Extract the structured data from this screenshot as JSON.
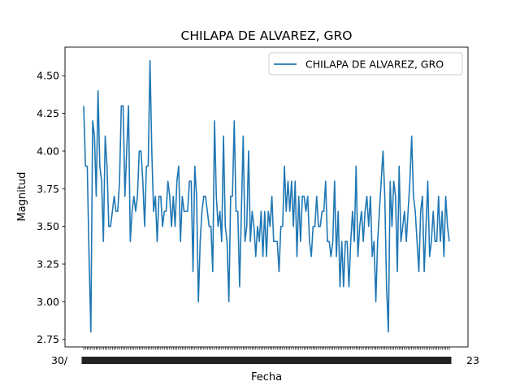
{
  "colors": {
    "line": "#1f77b4",
    "axes": "#000000",
    "legend_border": "#cccccc",
    "background": "#ffffff"
  },
  "chart_data": {
    "type": "line",
    "title": "CHILAPA DE ALVAREZ, GRO",
    "xlabel": "Fecha",
    "ylabel": "Magnitud",
    "ylim": [
      2.7,
      4.69
    ],
    "yticks": [
      "2.75",
      "3.00",
      "3.25",
      "3.50",
      "3.75",
      "4.00",
      "4.25",
      "4.50"
    ],
    "xtick_first": "30/",
    "xtick_last": "23",
    "grid": false,
    "legend": {
      "position": "top-right",
      "label": "CHILAPA DE ALVAREZ, GRO"
    },
    "series": [
      {
        "name": "CHILAPA DE ALVAREZ, GRO",
        "values": [
          4.3,
          3.9,
          3.9,
          3.3,
          2.8,
          4.2,
          4.1,
          3.7,
          4.4,
          3.9,
          3.8,
          3.4,
          4.1,
          3.9,
          3.5,
          3.5,
          3.6,
          3.7,
          3.6,
          3.6,
          3.8,
          4.3,
          4.3,
          3.7,
          4.0,
          4.3,
          3.4,
          3.6,
          3.7,
          3.6,
          3.7,
          4.0,
          4.0,
          3.8,
          3.5,
          3.9,
          3.9,
          4.6,
          4.0,
          3.6,
          3.7,
          3.4,
          3.7,
          3.7,
          3.5,
          3.6,
          3.6,
          3.8,
          3.7,
          3.5,
          3.7,
          3.5,
          3.8,
          3.9,
          3.4,
          3.7,
          3.6,
          3.6,
          3.6,
          3.8,
          3.8,
          3.2,
          3.9,
          3.7,
          3.0,
          3.4,
          3.6,
          3.7,
          3.7,
          3.6,
          3.5,
          3.5,
          3.2,
          4.2,
          3.7,
          3.5,
          3.6,
          3.4,
          4.1,
          3.5,
          3.4,
          3.0,
          3.7,
          3.7,
          4.2,
          3.6,
          3.6,
          3.1,
          3.6,
          4.1,
          3.4,
          3.5,
          4.0,
          3.4,
          3.6,
          3.5,
          3.3,
          3.5,
          3.4,
          3.6,
          3.3,
          3.6,
          3.3,
          3.6,
          3.5,
          3.7,
          3.4,
          3.4,
          3.4,
          3.2,
          3.5,
          3.5,
          3.9,
          3.6,
          3.8,
          3.6,
          3.8,
          3.5,
          3.8,
          3.3,
          3.7,
          3.4,
          3.7,
          3.7,
          3.6,
          3.7,
          3.4,
          3.3,
          3.5,
          3.5,
          3.7,
          3.5,
          3.5,
          3.6,
          3.6,
          3.8,
          3.4,
          3.4,
          3.3,
          3.4,
          3.8,
          3.3,
          3.6,
          3.1,
          3.4,
          3.1,
          3.4,
          3.4,
          3.1,
          3.4,
          3.6,
          3.4,
          3.9,
          3.3,
          3.5,
          3.6,
          3.4,
          3.6,
          3.7,
          3.5,
          3.7,
          3.3,
          3.4,
          3.0,
          3.4,
          3.6,
          3.8,
          4.0,
          3.7,
          3.1,
          2.8,
          3.8,
          3.5,
          3.8,
          3.7,
          3.2,
          3.9,
          3.4,
          3.5,
          3.6,
          3.4,
          3.6,
          3.8,
          4.1,
          3.7,
          3.6,
          3.4,
          3.2,
          3.6,
          3.7,
          3.2,
          3.5,
          3.8,
          3.3,
          3.4,
          3.6,
          3.4,
          3.4,
          3.7,
          3.4,
          3.6,
          3.3,
          3.7,
          3.5,
          3.4
        ]
      }
    ]
  }
}
